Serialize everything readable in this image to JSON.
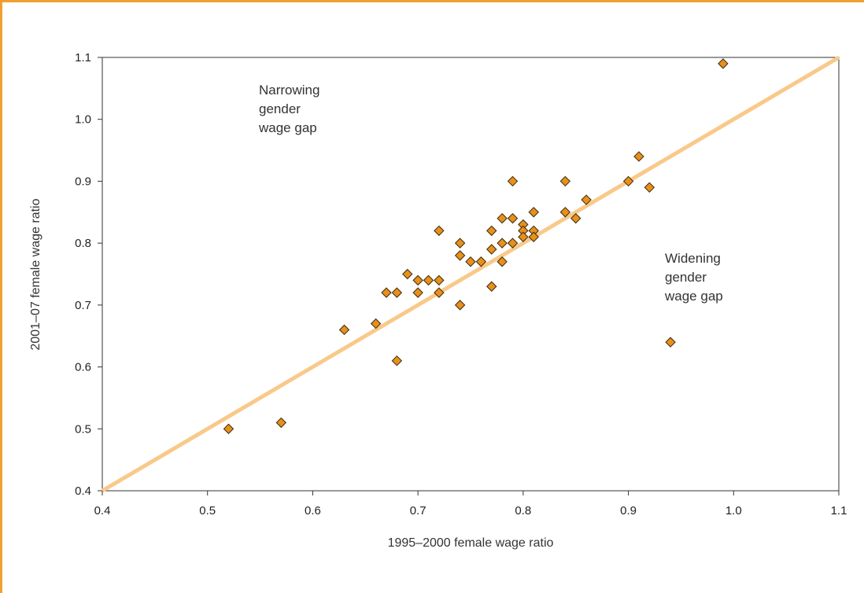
{
  "chart_data": {
    "type": "scatter",
    "xlabel": "1995–2000 female wage ratio",
    "ylabel": "2001–07 female wage ratio",
    "xlim": [
      0.4,
      1.1
    ],
    "ylim": [
      0.4,
      1.1
    ],
    "x_ticks": [
      "0.4",
      "0.5",
      "0.6",
      "0.7",
      "0.8",
      "0.9",
      "1.0",
      "1.1"
    ],
    "y_ticks": [
      "0.4",
      "0.5",
      "0.6",
      "0.7",
      "0.8",
      "0.9",
      "1.0",
      "1.1"
    ],
    "grid": false,
    "reference_line": {
      "from": [
        0.4,
        0.4
      ],
      "to": [
        1.1,
        1.1
      ],
      "color": "#F9C98A"
    },
    "marker_color": "#E8901A",
    "frame_color": "#F0A030",
    "annotations": [
      {
        "lines": [
          "Narrowing",
          "gender",
          "wage gap"
        ]
      },
      {
        "lines": [
          "Widening",
          "gender",
          "wage gap"
        ]
      }
    ],
    "points": [
      {
        "x": 0.52,
        "y": 0.5
      },
      {
        "x": 0.57,
        "y": 0.51
      },
      {
        "x": 0.63,
        "y": 0.66
      },
      {
        "x": 0.66,
        "y": 0.67
      },
      {
        "x": 0.67,
        "y": 0.72
      },
      {
        "x": 0.68,
        "y": 0.72
      },
      {
        "x": 0.68,
        "y": 0.61
      },
      {
        "x": 0.69,
        "y": 0.75
      },
      {
        "x": 0.7,
        "y": 0.74
      },
      {
        "x": 0.7,
        "y": 0.72
      },
      {
        "x": 0.71,
        "y": 0.74
      },
      {
        "x": 0.72,
        "y": 0.74
      },
      {
        "x": 0.72,
        "y": 0.72
      },
      {
        "x": 0.72,
        "y": 0.82
      },
      {
        "x": 0.74,
        "y": 0.8
      },
      {
        "x": 0.74,
        "y": 0.78
      },
      {
        "x": 0.74,
        "y": 0.7
      },
      {
        "x": 0.75,
        "y": 0.77
      },
      {
        "x": 0.76,
        "y": 0.77
      },
      {
        "x": 0.77,
        "y": 0.82
      },
      {
        "x": 0.77,
        "y": 0.79
      },
      {
        "x": 0.77,
        "y": 0.73
      },
      {
        "x": 0.78,
        "y": 0.84
      },
      {
        "x": 0.78,
        "y": 0.8
      },
      {
        "x": 0.78,
        "y": 0.77
      },
      {
        "x": 0.79,
        "y": 0.9
      },
      {
        "x": 0.79,
        "y": 0.84
      },
      {
        "x": 0.79,
        "y": 0.8
      },
      {
        "x": 0.8,
        "y": 0.83
      },
      {
        "x": 0.8,
        "y": 0.82
      },
      {
        "x": 0.8,
        "y": 0.81
      },
      {
        "x": 0.81,
        "y": 0.85
      },
      {
        "x": 0.81,
        "y": 0.82
      },
      {
        "x": 0.81,
        "y": 0.81
      },
      {
        "x": 0.84,
        "y": 0.9
      },
      {
        "x": 0.84,
        "y": 0.85
      },
      {
        "x": 0.85,
        "y": 0.84
      },
      {
        "x": 0.86,
        "y": 0.87
      },
      {
        "x": 0.9,
        "y": 0.9
      },
      {
        "x": 0.91,
        "y": 0.94
      },
      {
        "x": 0.92,
        "y": 0.89
      },
      {
        "x": 0.94,
        "y": 0.64
      },
      {
        "x": 0.99,
        "y": 1.09
      }
    ]
  }
}
